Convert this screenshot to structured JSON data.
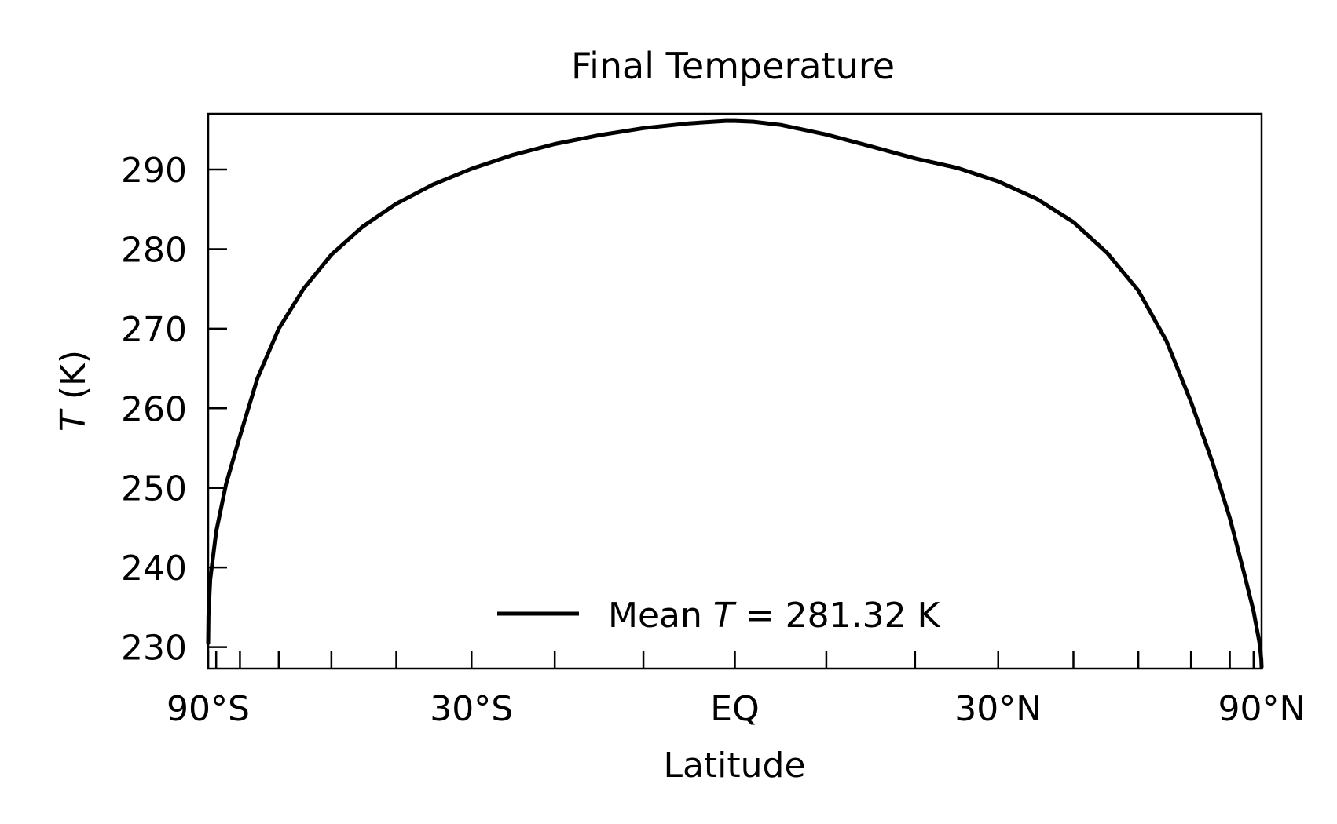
{
  "chart_data": {
    "type": "line",
    "title": "Final Temperature",
    "xlabel": "Latitude",
    "ylabel_italic": "T",
    "ylabel_rest": " (K)",
    "x_scale": "sine of latitude",
    "xlim": [
      -90,
      90
    ],
    "ylim": [
      227.3,
      297
    ],
    "yticks": [
      230,
      240,
      250,
      260,
      270,
      280,
      290
    ],
    "xticks_labeled": [
      {
        "lat": -90,
        "label": "90°S"
      },
      {
        "lat": -30,
        "label": "30°S"
      },
      {
        "lat": 0,
        "label": "EQ"
      },
      {
        "lat": 30,
        "label": "30°N"
      },
      {
        "lat": 90,
        "label": "90°N"
      }
    ],
    "xticks_minor": [
      -80,
      -70,
      -60,
      -50,
      -40,
      -20,
      -10,
      10,
      20,
      40,
      50,
      60,
      70,
      80
    ],
    "grid": false,
    "legend": {
      "placement": "bottom-center",
      "prefix": "Mean ",
      "italic": "T",
      "suffix": " = 281.32 K"
    },
    "series": [
      {
        "color": "#000000",
        "points": [
          [
            -90,
            230.5
          ],
          [
            -88,
            234
          ],
          [
            -85,
            238.5
          ],
          [
            -80,
            244.5
          ],
          [
            -75,
            250.5
          ],
          [
            -70,
            256.5
          ],
          [
            -65,
            263.8
          ],
          [
            -60,
            270
          ],
          [
            -55,
            275
          ],
          [
            -50,
            279.3
          ],
          [
            -45,
            282.8
          ],
          [
            -40,
            285.7
          ],
          [
            -35,
            288.1
          ],
          [
            -30,
            290.1
          ],
          [
            -25,
            291.8
          ],
          [
            -20,
            293.2
          ],
          [
            -15,
            294.3
          ],
          [
            -10,
            295.2
          ],
          [
            -5,
            295.8
          ],
          [
            -1,
            296.1
          ],
          [
            0,
            296.1
          ],
          [
            2,
            296.0
          ],
          [
            5,
            295.6
          ],
          [
            10,
            294.4
          ],
          [
            15,
            292.9
          ],
          [
            20,
            291.4
          ],
          [
            25,
            290.2
          ],
          [
            30,
            288.5
          ],
          [
            35,
            286.3
          ],
          [
            40,
            283.4
          ],
          [
            45,
            279.5
          ],
          [
            50,
            274.8
          ],
          [
            55,
            268.5
          ],
          [
            60,
            260.8
          ],
          [
            65,
            253.3
          ],
          [
            70,
            246.2
          ],
          [
            75,
            239.5
          ],
          [
            80,
            234.5
          ],
          [
            85,
            230.5
          ],
          [
            88,
            228.5
          ],
          [
            90,
            227.5
          ]
        ]
      }
    ]
  }
}
